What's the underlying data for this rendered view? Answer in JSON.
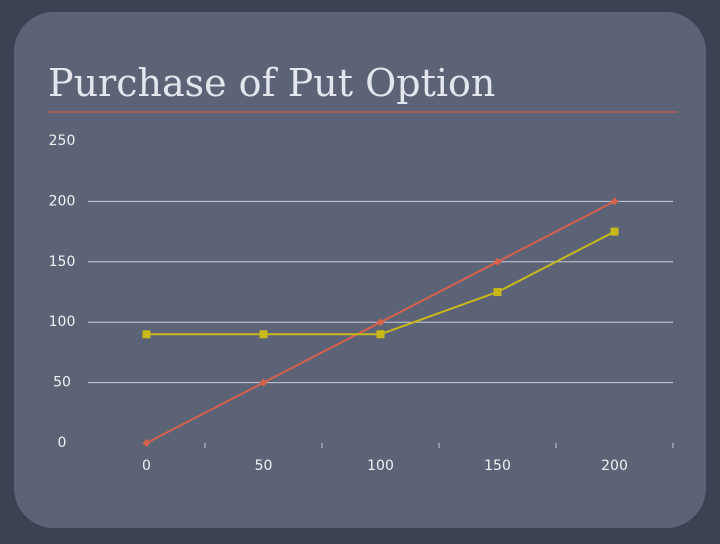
{
  "chart_data": {
    "type": "line",
    "title": "Purchase of Put Option",
    "categories": [
      "0",
      "50",
      "100",
      "150",
      "200"
    ],
    "series": [
      {
        "color": "#d4624c",
        "marker": "diamond",
        "values": [
          0,
          50,
          100,
          150,
          200
        ]
      },
      {
        "color": "#c9b81a",
        "marker": "square",
        "values": [
          90,
          90,
          90,
          125,
          175
        ]
      }
    ],
    "ylim": [
      0,
      250
    ],
    "yticks": [
      0,
      50,
      100,
      150,
      200,
      250
    ],
    "grid": true
  }
}
